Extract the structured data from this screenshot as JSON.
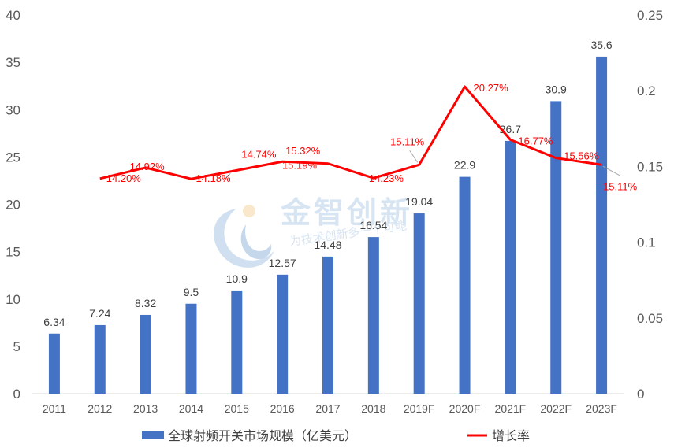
{
  "chart_data": {
    "type": "bar",
    "categories": [
      "2011",
      "2012",
      "2013",
      "2014",
      "2015",
      "2016",
      "2017",
      "2018",
      "2019F",
      "2020F",
      "2021F",
      "2022F",
      "2023F"
    ],
    "series": [
      {
        "name": "全球射频开关市场规模（亿美元）",
        "type": "bar",
        "axis": "left",
        "color": "#4472c4",
        "values": [
          6.34,
          7.24,
          8.32,
          9.5,
          10.9,
          12.57,
          14.48,
          16.54,
          19.04,
          22.9,
          26.7,
          30.9,
          35.6
        ],
        "labels": [
          "6.34",
          "7.24",
          "8.32",
          "9.5",
          "10.9",
          "12.57",
          "14.48",
          "16.54",
          "19.04",
          "22.9",
          "26.7",
          "30.9",
          "35.6"
        ]
      },
      {
        "name": "增长率",
        "type": "line",
        "axis": "right",
        "color": "#ff0000",
        "values": [
          null,
          0.142,
          0.1492,
          0.1418,
          0.1474,
          0.1532,
          0.1519,
          0.1423,
          0.1511,
          0.2027,
          0.1677,
          0.1556,
          0.1511
        ],
        "labels": [
          "",
          "14.20%",
          "14.92%",
          "14.18%",
          "14.74%",
          "15.32%",
          "15.19%",
          "14.23%",
          "15.11%",
          "20.27%",
          "16.77%",
          "15.56%",
          "15.11%"
        ]
      }
    ],
    "y_left": {
      "ticks": [
        "0",
        "5",
        "10",
        "15",
        "20",
        "25",
        "30",
        "35",
        "40"
      ],
      "min": 0,
      "max": 40
    },
    "y_right": {
      "ticks": [
        "0",
        "0.05",
        "0.1",
        "0.15",
        "0.2",
        "0.25"
      ],
      "min": 0,
      "max": 0.25
    },
    "legend_position": "bottom",
    "grid": false
  },
  "watermark": {
    "title": "金智创新",
    "subtitle": "为技术创新多一个可能"
  }
}
